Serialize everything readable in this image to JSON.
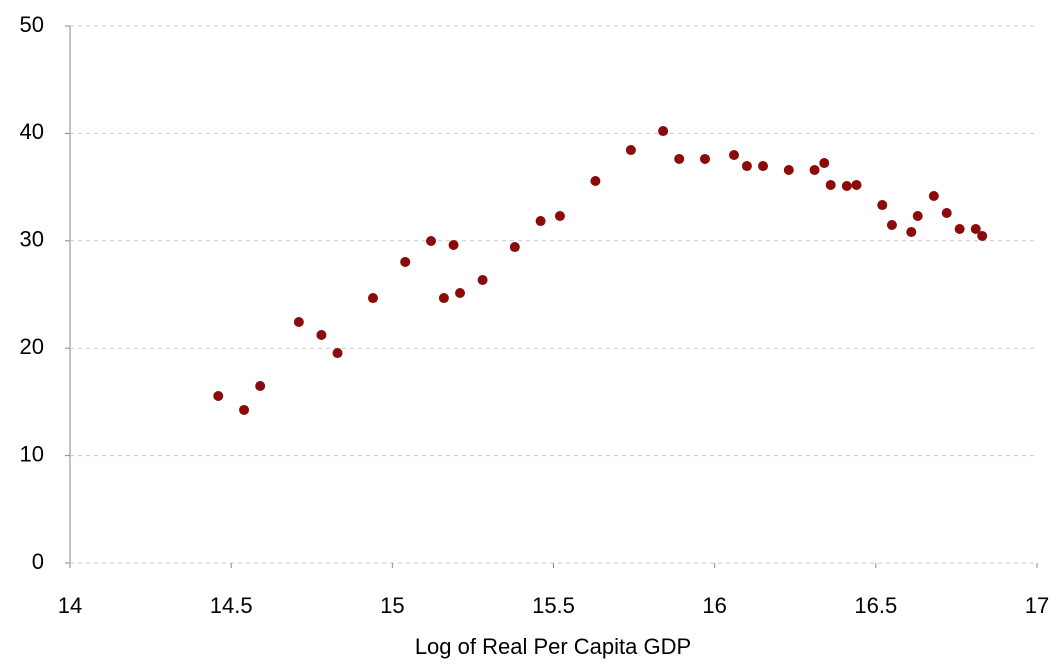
{
  "chart_data": {
    "type": "scatter",
    "x_label": "Log of Real Per Capita GDP",
    "color": "#8b0a0a",
    "x": [
      14.46,
      14.54,
      14.59,
      14.71,
      14.78,
      14.83,
      14.94,
      15.04,
      15.12,
      15.16,
      15.19,
      15.21,
      15.28,
      15.38,
      15.46,
      15.52,
      15.63,
      15.74,
      15.84,
      15.89,
      15.97,
      16.06,
      16.1,
      16.15,
      16.23,
      16.31,
      16.34,
      16.36,
      16.41,
      16.44,
      16.52,
      16.55,
      16.61,
      16.63,
      16.68,
      16.72,
      16.76,
      16.81,
      16.83
    ],
    "values": [
      15.55,
      14.25,
      16.48,
      22.44,
      21.23,
      19.55,
      24.67,
      28.03,
      29.98,
      24.67,
      29.61,
      25.14,
      26.35,
      29.42,
      31.84,
      32.31,
      35.57,
      38.45,
      40.22,
      37.62,
      37.62,
      37.99,
      36.96,
      36.96,
      36.59,
      36.59,
      37.24,
      35.2,
      35.1,
      35.2,
      33.33,
      31.47,
      30.82,
      32.31,
      34.17,
      32.59,
      31.1,
      31.1,
      30.45
    ],
    "xlim": [
      14,
      17
    ],
    "xticks": [
      14,
      14.5,
      15,
      15.5,
      16,
      16.5,
      17
    ],
    "ylim": [
      0,
      50
    ],
    "yticks": [
      0,
      10,
      20,
      30,
      40,
      50
    ],
    "grid": true
  }
}
